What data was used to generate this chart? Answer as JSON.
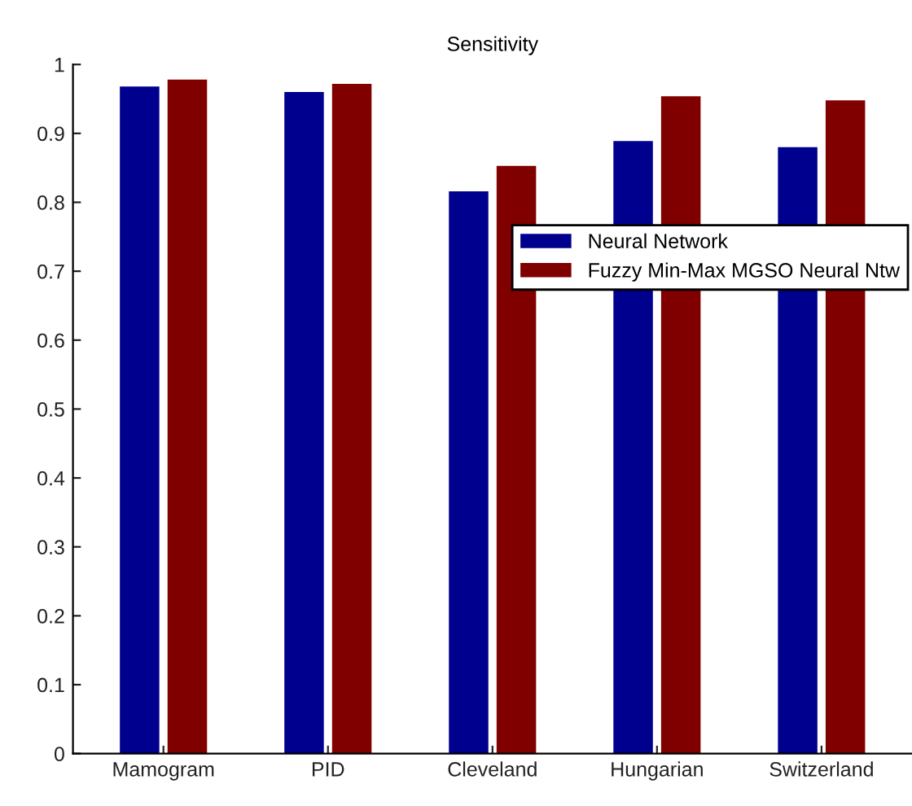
{
  "chart_data": {
    "type": "bar",
    "title": "Sensitivity",
    "categories": [
      "Mamogram",
      "PID",
      "Cleveland",
      "Hungarian",
      "Switzerland"
    ],
    "series": [
      {
        "name": "Neural Network",
        "color": "#00008f",
        "values": [
          0.968,
          0.96,
          0.816,
          0.889,
          0.88
        ]
      },
      {
        "name": "Fuzzy Min-Max MGSO Neural Ntw",
        "color": "#800000",
        "values": [
          0.978,
          0.972,
          0.853,
          0.954,
          0.948
        ]
      }
    ],
    "ylim": [
      0,
      1
    ],
    "yticks": [
      0,
      0.1,
      0.2,
      0.3,
      0.4,
      0.5,
      0.6,
      0.7,
      0.8,
      0.9,
      1
    ],
    "grid": false,
    "legend": "right"
  }
}
